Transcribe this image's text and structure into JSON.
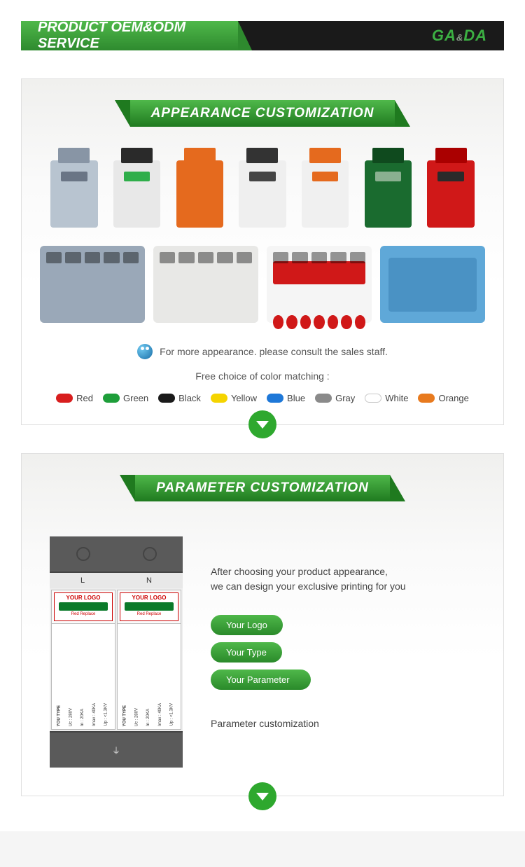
{
  "header": {
    "title": "PRODUCT OEM&ODM SERVICE",
    "logo_main": "GA",
    "logo_amp": "&",
    "logo_end": "DA"
  },
  "section1": {
    "banner": "APPEARANCE CUSTOMIZATION",
    "row1_colors": [
      {
        "body": "#b8c4d0",
        "top": "#8895a5",
        "win": "#6a7585"
      },
      {
        "body": "#e8e8e8",
        "top": "#2a2a2a",
        "win": "#2fae4a"
      },
      {
        "body": "#f5f3ef",
        "top": "#e56a1e",
        "win": "#e56a1e",
        "front": "#e56a1e"
      },
      {
        "body": "#efefef",
        "top": "#333",
        "win": "#444"
      },
      {
        "body": "#f0f0f0",
        "top": "#e56a1e",
        "win": "#e56a1e"
      },
      {
        "body": "#1a6b2f",
        "top": "#0f4a1e",
        "win": "#8ab090"
      },
      {
        "body": "#d01818",
        "top": "#a00",
        "win": "#2a2a2a"
      }
    ],
    "row2": [
      {
        "body": "#9aa8b8",
        "slots": true
      },
      {
        "body": "#e8e8e6",
        "slots": true
      },
      {
        "body": "#f5f5f5",
        "slots": true,
        "knob_color": "#d01818",
        "top_band": "#d01818"
      },
      {
        "body": "#5fa8d8",
        "center": "#4a92c4"
      }
    ],
    "info_text": "For more appearance. please consult the sales staff.",
    "choice_text": "Free choice of color matching :",
    "colors": [
      {
        "name": "Red",
        "hex": "#d81e1e"
      },
      {
        "name": "Green",
        "hex": "#1e9e3a"
      },
      {
        "name": "Black",
        "hex": "#1a1a1a"
      },
      {
        "name": "Yellow",
        "hex": "#f5d400"
      },
      {
        "name": "Blue",
        "hex": "#1e78d8"
      },
      {
        "name": "Gray",
        "hex": "#8a8a8a"
      },
      {
        "name": "White",
        "hex": "#ffffff",
        "border": "#c8c8c8"
      },
      {
        "name": "Orange",
        "hex": "#e87a1e"
      }
    ]
  },
  "section2": {
    "banner": "PARAMETER CUSTOMIZATION",
    "device": {
      "ln_left": "L",
      "ln_right": "N",
      "logo": "YOUR LOGO",
      "red_text": "Red\nReplace",
      "type_label": "YOU TYPE",
      "params": [
        "Uc : 280V",
        "In : 20KA",
        "Imax : 40KA",
        "Up : <1.3KV"
      ],
      "ground": "⏚"
    },
    "desc_line1": "After choosing your product appearance,",
    "desc_line2": "we can design your exclusive printing for you",
    "pills": [
      "Your Logo",
      "Your Type",
      "Your Parameter"
    ],
    "footer": "Parameter customization"
  }
}
